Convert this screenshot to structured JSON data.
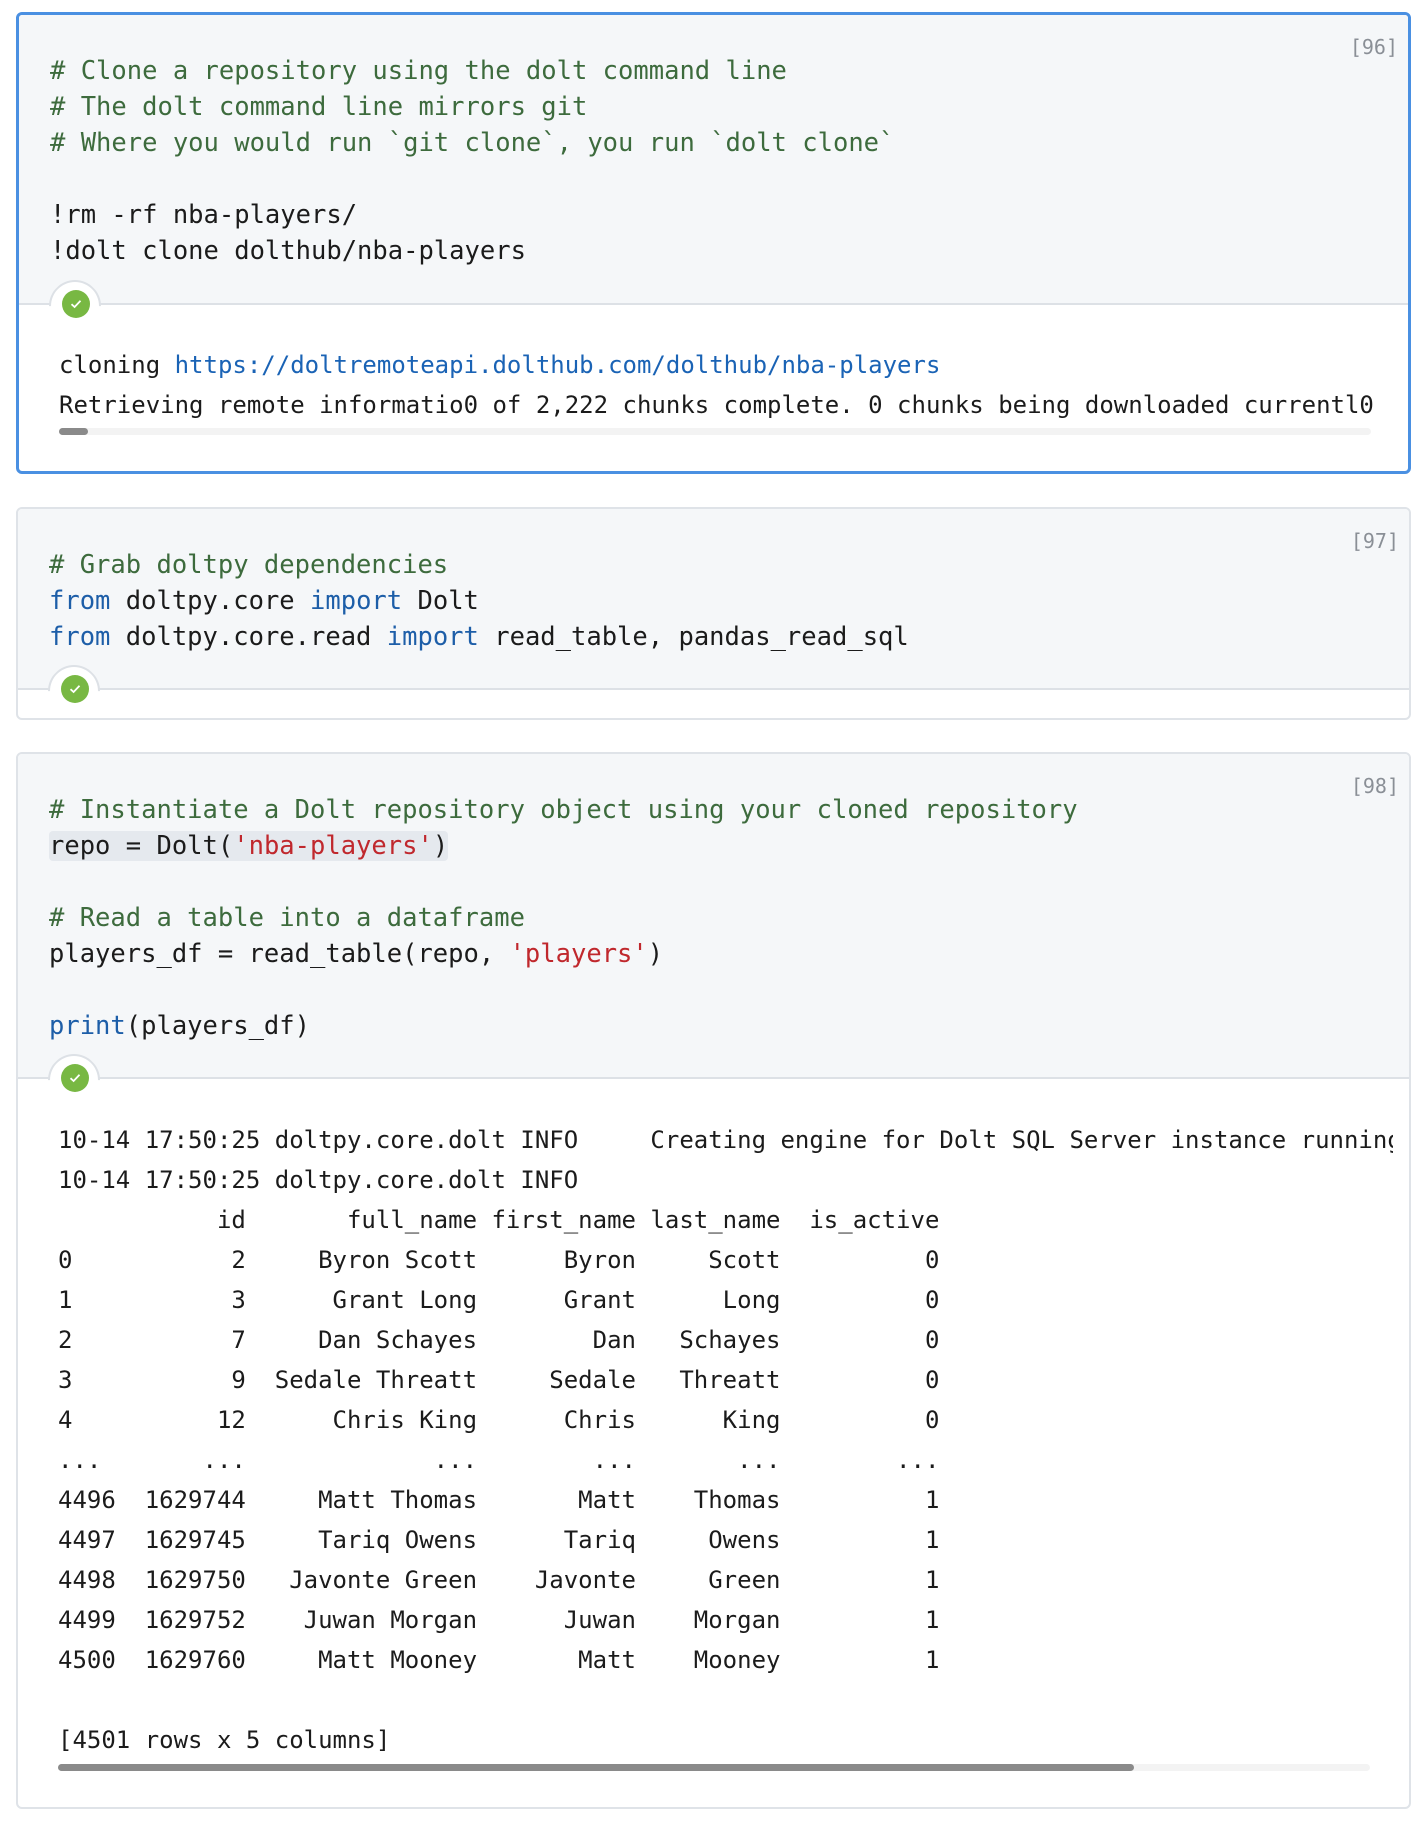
{
  "accent_color": "#4a90e2",
  "status_color": "#78b843",
  "cells": [
    {
      "counter": "[96]",
      "active": true,
      "status_icon": "check-circle-icon",
      "code": {
        "c1": "# Clone a repository using the dolt command line",
        "c2": "# The dolt command line mirrors git",
        "c3": "# Where you would run `git clone`, you run `dolt clone`",
        "l4": "!rm -rf nba-players/",
        "l5": "!dolt clone dolthub/nba-players"
      },
      "output": {
        "cloning_label": "cloning ",
        "url": "https://doltremoteapi.dolthub.com/dolthub/nba-players",
        "progress_line": "Retrieving remote informatio0 of 2,222 chunks complete. 0 chunks being downloaded currentl0",
        "scroll_fraction": 0.022
      }
    },
    {
      "counter": "[97]",
      "active": false,
      "status_icon": "check-circle-icon",
      "code": {
        "c1": "# Grab doltpy dependencies",
        "from1": "from",
        "mod1": " doltpy.core ",
        "imp1": "import",
        "name1": " Dolt",
        "from2": "from",
        "mod2": " doltpy.core.read ",
        "imp2": "import",
        "name2": " read_table, pandas_read_sql"
      }
    },
    {
      "counter": "[98]",
      "active": false,
      "status_icon": "check-circle-icon",
      "code": {
        "c1": "# Instantiate a Dolt repository object using your cloned repository",
        "l2a": "repo = Dolt(",
        "l2s": "'nba-players'",
        "l2b": ")",
        "c4": "# Read a table into a dataframe",
        "l5a": "players_df = read_table(repo, ",
        "l5s": "'players'",
        "l5b": ")",
        "l7k": "print",
        "l7a": "(players_df)"
      },
      "output": {
        "log_lines": [
          "10-14 17:50:25 doltpy.core.dolt INFO     Creating engine for Dolt SQL Server instance running",
          "10-14 17:50:25 doltpy.core.dolt INFO"
        ],
        "table": {
          "columns": [
            "id",
            "full_name",
            "first_name",
            "last_name",
            "is_active"
          ],
          "rows": [
            [
              "0",
              "2",
              "Byron Scott",
              "Byron",
              "Scott",
              "0"
            ],
            [
              "1",
              "3",
              "Grant Long",
              "Grant",
              "Long",
              "0"
            ],
            [
              "2",
              "7",
              "Dan Schayes",
              "Dan",
              "Schayes",
              "0"
            ],
            [
              "3",
              "9",
              "Sedale Threatt",
              "Sedale",
              "Threatt",
              "0"
            ],
            [
              "4",
              "12",
              "Chris King",
              "Chris",
              "King",
              "0"
            ],
            [
              "...",
              "...",
              "...",
              "...",
              "...",
              "..."
            ],
            [
              "4496",
              "1629744",
              "Matt Thomas",
              "Matt",
              "Thomas",
              "1"
            ],
            [
              "4497",
              "1629745",
              "Tariq Owens",
              "Tariq",
              "Owens",
              "1"
            ],
            [
              "4498",
              "1629750",
              "Javonte Green",
              "Javonte",
              "Green",
              "1"
            ],
            [
              "4499",
              "1629752",
              "Juwan Morgan",
              "Juwan",
              "Morgan",
              "1"
            ],
            [
              "4500",
              "1629760",
              "Matt Mooney",
              "Matt",
              "Mooney",
              "1"
            ]
          ]
        },
        "summary": "[4501 rows x 5 columns]",
        "scroll_fraction": 0.82
      }
    }
  ]
}
